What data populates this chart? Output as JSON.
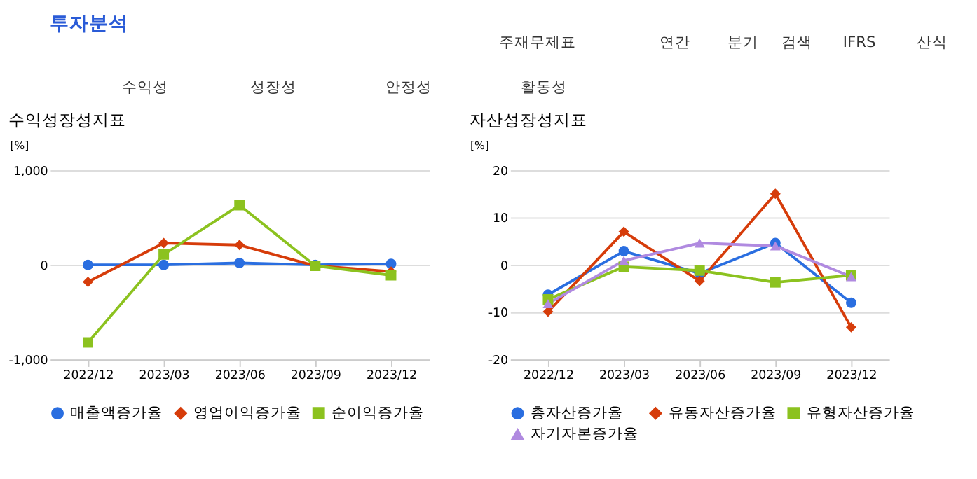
{
  "chart_data": [
    {
      "type": "other",
      "title": "투자분석",
      "annotations": [
        "주재무제표",
        "연간",
        "분기",
        "검색",
        "IFRS",
        "산식",
        "수익성",
        "성장성",
        "안정성",
        "활동성"
      ]
    },
    {
      "type": "line",
      "title": "수익성장성지표",
      "ylabel": "[%]",
      "categories": [
        "2022/12",
        "2023/03",
        "2023/06",
        "2023/09",
        "2023/12"
      ],
      "ylim": [
        -1000,
        1000
      ],
      "yticks": [
        {
          "value": -1000,
          "label": "-1,000"
        },
        0,
        {
          "value": 1000,
          "label": "1,000"
        }
      ],
      "grid": "y",
      "legend": "bottom",
      "series": [
        {
          "name": "매출액증가율",
          "color": "#2a6ee0",
          "marker": "circle",
          "values": [
            0,
            0,
            20,
            0,
            10
          ]
        },
        {
          "name": "영업이익증가율",
          "color": "#d63c0a",
          "marker": "diamond",
          "values": [
            -180,
            230,
            210,
            -10,
            -70
          ]
        },
        {
          "name": "순이익증가율",
          "color": "#8cc21f",
          "marker": "square",
          "values": [
            -820,
            110,
            630,
            -10,
            -110
          ]
        }
      ]
    },
    {
      "type": "line",
      "title": "자산성장성지표",
      "ylabel": "[%]",
      "categories": [
        "2022/12",
        "2023/03",
        "2023/06",
        "2023/09",
        "2023/12"
      ],
      "ylim": [
        -20,
        20
      ],
      "yticks": [
        -20,
        -10,
        0,
        10,
        20
      ],
      "grid": "y",
      "legend": "bottom",
      "series": [
        {
          "name": "총자산증가율",
          "color": "#2a6ee0",
          "marker": "circle",
          "values": [
            -6.3,
            2.9,
            -1.8,
            4.6,
            -8.0
          ]
        },
        {
          "name": "유동자산증가율",
          "color": "#d63c0a",
          "marker": "diamond",
          "values": [
            -9.9,
            7.0,
            -3.4,
            15.0,
            -13.2
          ]
        },
        {
          "name": "유형자산증가율",
          "color": "#8cc21f",
          "marker": "square",
          "values": [
            -7.3,
            -0.4,
            -1.2,
            -3.7,
            -2.2
          ]
        },
        {
          "name": "자기자본증가율",
          "color": "#b08ae0",
          "marker": "triangle",
          "values": [
            -8.2,
            0.9,
            4.6,
            4.0,
            -2.5
          ]
        }
      ]
    }
  ]
}
